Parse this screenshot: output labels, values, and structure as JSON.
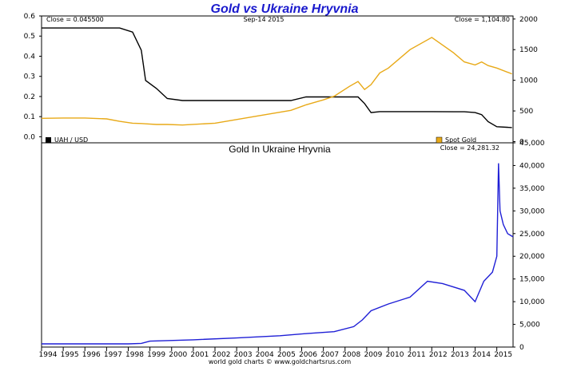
{
  "chart_title": "Gold vs Ukraine Hryvnia",
  "footer": "world gold charts © www.goldchartsrus.com",
  "colors": {
    "title": "#1a1acd",
    "uah": "#000000",
    "gold": "#e8a917",
    "hryvnia_gold": "#1f1fd6"
  },
  "chart_data": [
    {
      "type": "line",
      "panel": "top",
      "header_left": "Close = 0.045500",
      "header_center": "Sep-14  2015",
      "header_right": "Close = 1,104.80",
      "x": [
        1994,
        1995,
        1996,
        1997,
        1997.6,
        1998.2,
        1998.6,
        1998.8,
        1999.3,
        1999.8,
        2000.5,
        2002,
        2004,
        2005.5,
        2006.2,
        2007,
        2007.5,
        2008.2,
        2008.6,
        2008.9,
        2009.2,
        2009.6,
        2010,
        2011,
        2012,
        2013,
        2013.5,
        2014,
        2014.3,
        2014.6,
        2015,
        2015.7
      ],
      "xlim": [
        1994,
        2015.75
      ],
      "series": [
        {
          "name": "UAH / USD",
          "axis": "left",
          "ylim": [
            -0.03,
            0.6
          ],
          "values": [
            0.54,
            0.54,
            0.54,
            0.54,
            0.54,
            0.52,
            0.43,
            0.28,
            0.24,
            0.19,
            0.18,
            0.18,
            0.18,
            0.18,
            0.198,
            0.198,
            0.198,
            0.198,
            0.198,
            0.165,
            0.12,
            0.125,
            0.125,
            0.125,
            0.125,
            0.124,
            0.124,
            0.12,
            0.11,
            0.075,
            0.05,
            0.0455
          ]
        },
        {
          "name": "Spot Gold",
          "axis": "right",
          "ylim": [
            -20,
            2050
          ],
          "values": [
            380,
            385,
            385,
            370,
            330,
            300,
            295,
            290,
            280,
            280,
            270,
            300,
            420,
            510,
            600,
            680,
            740,
            900,
            980,
            850,
            930,
            1120,
            1200,
            1500,
            1700,
            1450,
            1300,
            1250,
            1300,
            1240,
            1200,
            1104.8
          ]
        }
      ],
      "y_ticks_left": [
        "0.0",
        "0.1",
        "0.2",
        "0.3",
        "0.4",
        "0.5",
        "0.6"
      ],
      "y_ticks_right": [
        "0",
        "500",
        "1000",
        "1500",
        "2000"
      ]
    },
    {
      "type": "line",
      "panel": "bottom",
      "title": "Gold In Ukraine Hryvnia",
      "header_right": "Close = 24,281.32",
      "x": [
        1994,
        1996,
        1998,
        1998.6,
        1999,
        2001,
        2003,
        2005,
        2006.3,
        2007.5,
        2008.4,
        2008.8,
        2009.2,
        2010,
        2011,
        2011.8,
        2012.5,
        2013.5,
        2014.0,
        2014.4,
        2014.8,
        2015.0,
        2015.08,
        2015.15,
        2015.3,
        2015.5,
        2015.75
      ],
      "xlim": [
        1994,
        2015.75
      ],
      "xtick_labels": [
        "1994",
        "1995",
        "1996",
        "1997",
        "1998",
        "1999",
        "2000",
        "2001",
        "2002",
        "2003",
        "2004",
        "2005",
        "2006",
        "2007",
        "2008",
        "2009",
        "2010",
        "2011",
        "2012",
        "2013",
        "2014",
        "2015"
      ],
      "ylim": [
        0,
        45000
      ],
      "y_ticks": [
        "0",
        "5,000",
        "10,000",
        "15,000",
        "20,000",
        "25,000",
        "30,000",
        "35,000",
        "40,000",
        "45,000"
      ],
      "series": [
        {
          "name": "Gold In Ukraine Hryvnia",
          "values": [
            700,
            700,
            700,
            800,
            1300,
            1600,
            2000,
            2500,
            3000,
            3400,
            4500,
            6000,
            8000,
            9500,
            11000,
            14500,
            14000,
            12500,
            10000,
            14500,
            16500,
            20000,
            40500,
            30000,
            27000,
            25000,
            24281.32
          ]
        }
      ]
    }
  ]
}
